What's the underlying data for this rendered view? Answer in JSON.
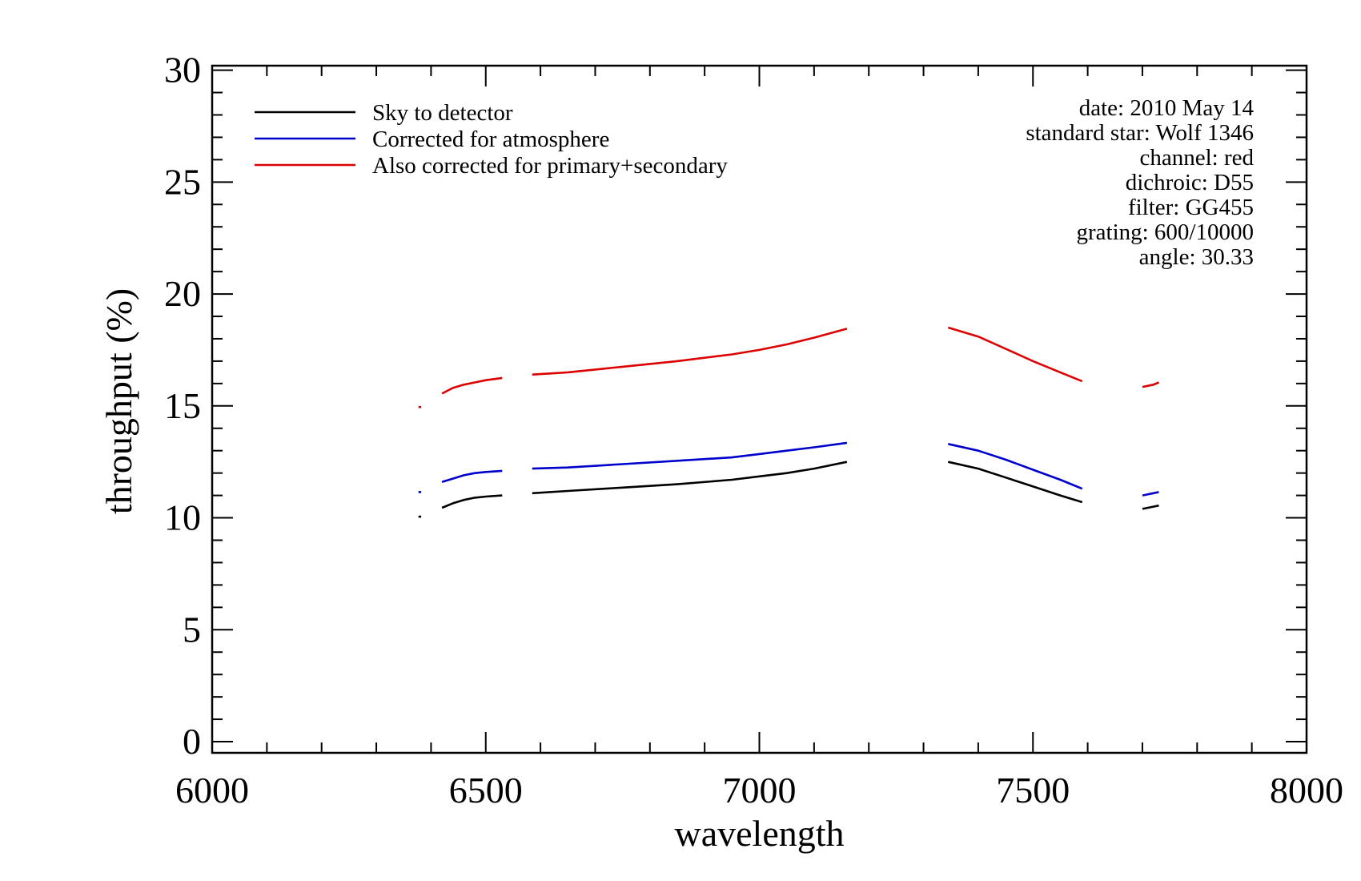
{
  "chart_data": {
    "type": "line",
    "xlabel": "wavelength",
    "ylabel": "throughput (%)",
    "xlim": [
      6000,
      8000
    ],
    "ylim": [
      -0.5,
      30.2
    ],
    "x_ticks": [
      6000,
      6500,
      7000,
      7500,
      8000
    ],
    "x_minor_step": 100,
    "y_ticks": [
      0,
      5,
      10,
      15,
      20,
      25,
      30
    ],
    "y_minor_step": 1,
    "grid": false,
    "legend_position": "top-left",
    "legend": [
      "Sky to detector",
      "Corrected for atmosphere",
      "Also corrected for primary+secondary"
    ],
    "annotations": [
      "date: 2010 May 14",
      "standard star: Wolf 1346",
      "channel: red",
      "dichroic: D55",
      "filter: GG455",
      "grating: 600/10000",
      "angle: 30.33"
    ],
    "series": [
      {
        "name": "Sky to detector",
        "color": "#000000",
        "segments": [
          [
            [
              6377,
              10.05
            ],
            [
              6382,
              10.05
            ]
          ],
          [
            [
              6420,
              10.45
            ],
            [
              6440,
              10.65
            ],
            [
              6460,
              10.8
            ],
            [
              6480,
              10.9
            ],
            [
              6500,
              10.95
            ],
            [
              6530,
              11.0
            ]
          ],
          [
            [
              6585,
              11.1
            ],
            [
              6650,
              11.2
            ],
            [
              6750,
              11.35
            ],
            [
              6850,
              11.5
            ],
            [
              6950,
              11.7
            ],
            [
              7000,
              11.85
            ],
            [
              7050,
              12.0
            ],
            [
              7100,
              12.2
            ],
            [
              7160,
              12.5
            ]
          ],
          [
            [
              7345,
              12.5
            ],
            [
              7400,
              12.2
            ],
            [
              7450,
              11.8
            ],
            [
              7500,
              11.4
            ],
            [
              7550,
              11.0
            ],
            [
              7590,
              10.7
            ]
          ],
          [
            [
              7700,
              10.4
            ],
            [
              7720,
              10.5
            ],
            [
              7730,
              10.55
            ]
          ]
        ]
      },
      {
        "name": "Corrected for atmosphere",
        "color": "#0000cc",
        "segments": [
          [
            [
              6377,
              11.15
            ],
            [
              6382,
              11.15
            ]
          ],
          [
            [
              6420,
              11.6
            ],
            [
              6440,
              11.75
            ],
            [
              6460,
              11.9
            ],
            [
              6480,
              12.0
            ],
            [
              6500,
              12.05
            ],
            [
              6530,
              12.1
            ]
          ],
          [
            [
              6585,
              12.2
            ],
            [
              6650,
              12.25
            ],
            [
              6750,
              12.4
            ],
            [
              6850,
              12.55
            ],
            [
              6950,
              12.7
            ],
            [
              7000,
              12.85
            ],
            [
              7050,
              13.0
            ],
            [
              7100,
              13.15
            ],
            [
              7160,
              13.35
            ]
          ],
          [
            [
              7345,
              13.3
            ],
            [
              7400,
              13.0
            ],
            [
              7450,
              12.6
            ],
            [
              7500,
              12.15
            ],
            [
              7550,
              11.7
            ],
            [
              7590,
              11.3
            ]
          ],
          [
            [
              7700,
              11.0
            ],
            [
              7720,
              11.1
            ],
            [
              7730,
              11.15
            ]
          ]
        ]
      },
      {
        "name": "Also corrected for primary+secondary",
        "color": "#dd0000",
        "segments": [
          [
            [
              6377,
              14.95
            ],
            [
              6382,
              14.95
            ]
          ],
          [
            [
              6420,
              15.55
            ],
            [
              6440,
              15.8
            ],
            [
              6460,
              15.95
            ],
            [
              6480,
              16.05
            ],
            [
              6500,
              16.15
            ],
            [
              6530,
              16.25
            ]
          ],
          [
            [
              6585,
              16.4
            ],
            [
              6650,
              16.5
            ],
            [
              6750,
              16.75
            ],
            [
              6850,
              17.0
            ],
            [
              6950,
              17.3
            ],
            [
              7000,
              17.5
            ],
            [
              7050,
              17.75
            ],
            [
              7100,
              18.05
            ],
            [
              7160,
              18.45
            ]
          ],
          [
            [
              7345,
              18.5
            ],
            [
              7400,
              18.1
            ],
            [
              7450,
              17.55
            ],
            [
              7500,
              17.0
            ],
            [
              7550,
              16.5
            ],
            [
              7590,
              16.1
            ]
          ],
          [
            [
              7700,
              15.85
            ],
            [
              7720,
              15.95
            ],
            [
              7730,
              16.05
            ]
          ]
        ]
      }
    ]
  }
}
